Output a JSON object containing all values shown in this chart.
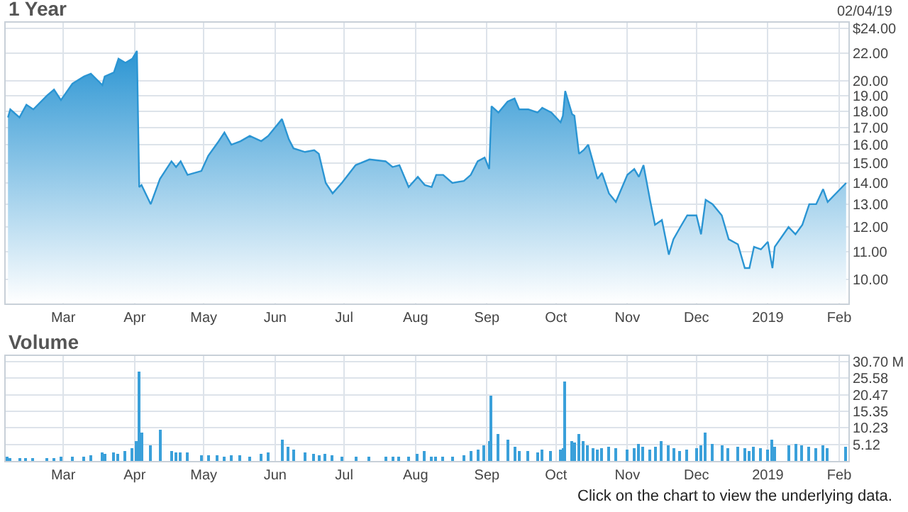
{
  "chart_data": [
    {
      "type": "area",
      "title": "1 Year",
      "annotations": [
        "02/04/19"
      ],
      "log": "y",
      "grid": true,
      "legend": false,
      "x": [
        "2018-02-05",
        "2018-02-06",
        "2018-02-10",
        "2018-02-13",
        "2018-02-16",
        "2018-02-22",
        "2018-02-25",
        "2018-02-28",
        "2018-03-05",
        "2018-03-10",
        "2018-03-13",
        "2018-03-18",
        "2018-03-19",
        "2018-03-23",
        "2018-03-25",
        "2018-03-28",
        "2018-03-31",
        "2018-04-02",
        "2018-04-03",
        "2018-04-04",
        "2018-04-08",
        "2018-04-12",
        "2018-04-17",
        "2018-04-19",
        "2018-04-21",
        "2018-04-24",
        "2018-04-30",
        "2018-05-03",
        "2018-05-07",
        "2018-05-10",
        "2018-05-13",
        "2018-05-17",
        "2018-05-21",
        "2018-05-26",
        "2018-05-29",
        "2018-06-04",
        "2018-06-07",
        "2018-06-09",
        "2018-06-14",
        "2018-06-18",
        "2018-06-20",
        "2018-06-23",
        "2018-06-26",
        "2018-06-30",
        "2018-07-06",
        "2018-07-12",
        "2018-07-19",
        "2018-07-22",
        "2018-07-25",
        "2018-07-29",
        "2018-08-02",
        "2018-08-05",
        "2018-08-08",
        "2018-08-10",
        "2018-08-13",
        "2018-08-17",
        "2018-08-22",
        "2018-08-25",
        "2018-08-28",
        "2018-08-31",
        "2018-09-02",
        "2018-09-03",
        "2018-09-06",
        "2018-09-10",
        "2018-09-13",
        "2018-09-15",
        "2018-09-19",
        "2018-09-23",
        "2018-09-25",
        "2018-09-29",
        "2018-10-03",
        "2018-10-04",
        "2018-10-05",
        "2018-10-08",
        "2018-10-09",
        "2018-10-11",
        "2018-10-13",
        "2018-10-15",
        "2018-10-17",
        "2018-10-19",
        "2018-10-21",
        "2018-10-24",
        "2018-10-27",
        "2018-11-01",
        "2018-11-04",
        "2018-11-06",
        "2018-11-08",
        "2018-11-11",
        "2018-11-13",
        "2018-11-16",
        "2018-11-19",
        "2018-11-21",
        "2018-11-24",
        "2018-11-27",
        "2018-12-01",
        "2018-12-03",
        "2018-12-05",
        "2018-12-08",
        "2018-12-12",
        "2018-12-15",
        "2018-12-19",
        "2018-12-22",
        "2018-12-24",
        "2018-12-26",
        "2018-12-29",
        "2019-01-01",
        "2019-01-03",
        "2019-01-04",
        "2019-01-10",
        "2019-01-13",
        "2019-01-16",
        "2019-01-19",
        "2019-01-22",
        "2019-01-25",
        "2019-01-27",
        "2019-02-04"
      ],
      "series": [
        {
          "color": "#2b95d3",
          "values": [
            17.6,
            18.1,
            17.6,
            18.4,
            18.1,
            19.0,
            19.4,
            18.7,
            19.8,
            20.3,
            20.5,
            19.7,
            20.3,
            20.6,
            21.6,
            21.3,
            21.6,
            22.2,
            13.8,
            13.9,
            13.0,
            14.2,
            15.1,
            14.8,
            15.1,
            14.4,
            14.6,
            15.4,
            16.1,
            16.7,
            16.0,
            16.2,
            16.5,
            16.2,
            16.5,
            17.5,
            16.3,
            15.8,
            15.6,
            15.7,
            15.5,
            14.0,
            13.5,
            14.0,
            14.9,
            15.2,
            15.1,
            14.8,
            14.9,
            13.8,
            14.3,
            13.9,
            13.8,
            14.4,
            14.4,
            14.0,
            14.1,
            14.4,
            15.1,
            15.3,
            14.7,
            18.3,
            17.9,
            18.6,
            18.8,
            18.1,
            18.1,
            17.9,
            18.2,
            17.9,
            17.3,
            17.7,
            19.3,
            17.8,
            17.7,
            15.5,
            15.7,
            16.0,
            15.1,
            14.2,
            14.5,
            13.5,
            13.1,
            14.4,
            14.7,
            14.3,
            14.9,
            13.1,
            12.1,
            12.3,
            10.9,
            11.5,
            12.0,
            12.5,
            12.5,
            11.7,
            13.2,
            13.0,
            12.5,
            11.5,
            11.3,
            10.4,
            10.4,
            11.2,
            11.1,
            11.4,
            10.4,
            11.2,
            12.0,
            11.7,
            12.1,
            13.0,
            13.0,
            13.7,
            13.1,
            14.0
          ]
        }
      ],
      "xlim": [
        "2018-02-04",
        "2019-02-05"
      ],
      "xticks": [
        {
          "value": "2018-03-01",
          "label": "Mar"
        },
        {
          "value": "2018-04-01",
          "label": "Apr"
        },
        {
          "value": "2018-05-01",
          "label": "May"
        },
        {
          "value": "2018-06-01",
          "label": "Jun"
        },
        {
          "value": "2018-07-01",
          "label": "Jul"
        },
        {
          "value": "2018-08-01",
          "label": "Aug"
        },
        {
          "value": "2018-09-01",
          "label": "Sep"
        },
        {
          "value": "2018-10-01",
          "label": "Oct"
        },
        {
          "value": "2018-11-01",
          "label": "Nov"
        },
        {
          "value": "2018-12-01",
          "label": "Dec"
        },
        {
          "value": "2019-01-01",
          "label": "2019"
        },
        {
          "value": "2019-02-01",
          "label": "Feb"
        }
      ],
      "ylim": [
        9.2,
        24.5
      ],
      "yticks": [
        {
          "value": 10,
          "label": "10.00"
        },
        {
          "value": 11,
          "label": "11.00"
        },
        {
          "value": 12,
          "label": "12.00"
        },
        {
          "value": 13,
          "label": "13.00"
        },
        {
          "value": 14,
          "label": "14.00"
        },
        {
          "value": 15,
          "label": "15.00"
        },
        {
          "value": 16,
          "label": "16.00"
        },
        {
          "value": 17,
          "label": "17.00"
        },
        {
          "value": 18,
          "label": "18.00"
        },
        {
          "value": 19,
          "label": "19.00"
        },
        {
          "value": 20,
          "label": "20.00"
        },
        {
          "value": 22,
          "label": "22.00"
        },
        {
          "value": 24,
          "label": "$24.00"
        }
      ]
    },
    {
      "type": "bar",
      "title": "Volume",
      "annotations": [
        "Click on the chart to view the underlying data."
      ],
      "grid": true,
      "legend": false,
      "x": [
        "2018-02-05",
        "2018-02-06",
        "2018-02-10",
        "2018-02-13",
        "2018-02-16",
        "2018-02-22",
        "2018-02-25",
        "2018-02-28",
        "2018-03-05",
        "2018-03-10",
        "2018-03-13",
        "2018-03-18",
        "2018-03-19",
        "2018-03-23",
        "2018-03-25",
        "2018-03-28",
        "2018-03-31",
        "2018-04-02",
        "2018-04-03",
        "2018-04-04",
        "2018-04-08",
        "2018-04-12",
        "2018-04-17",
        "2018-04-19",
        "2018-04-21",
        "2018-04-24",
        "2018-04-30",
        "2018-05-03",
        "2018-05-07",
        "2018-05-10",
        "2018-05-13",
        "2018-05-17",
        "2018-05-21",
        "2018-05-26",
        "2018-05-29",
        "2018-06-04",
        "2018-06-07",
        "2018-06-09",
        "2018-06-14",
        "2018-06-18",
        "2018-06-20",
        "2018-06-23",
        "2018-06-26",
        "2018-06-30",
        "2018-07-06",
        "2018-07-12",
        "2018-07-19",
        "2018-07-22",
        "2018-07-25",
        "2018-07-29",
        "2018-08-02",
        "2018-08-05",
        "2018-08-08",
        "2018-08-10",
        "2018-08-13",
        "2018-08-17",
        "2018-08-22",
        "2018-08-25",
        "2018-08-28",
        "2018-08-31",
        "2018-09-02",
        "2018-09-03",
        "2018-09-06",
        "2018-09-10",
        "2018-09-13",
        "2018-09-15",
        "2018-09-19",
        "2018-09-23",
        "2018-09-25",
        "2018-09-29",
        "2018-10-03",
        "2018-10-04",
        "2018-10-05",
        "2018-10-08",
        "2018-10-09",
        "2018-10-11",
        "2018-10-13",
        "2018-10-15",
        "2018-10-17",
        "2018-10-19",
        "2018-10-21",
        "2018-10-24",
        "2018-10-27",
        "2018-11-01",
        "2018-11-04",
        "2018-11-06",
        "2018-11-08",
        "2018-11-11",
        "2018-11-13",
        "2018-11-16",
        "2018-11-19",
        "2018-11-21",
        "2018-11-24",
        "2018-11-27",
        "2018-12-01",
        "2018-12-03",
        "2018-12-05",
        "2018-12-08",
        "2018-12-12",
        "2018-12-15",
        "2018-12-19",
        "2018-12-22",
        "2018-12-24",
        "2018-12-26",
        "2018-12-29",
        "2019-01-01",
        "2019-01-03",
        "2019-01-04",
        "2019-01-10",
        "2019-01-13",
        "2019-01-16",
        "2019-01-19",
        "2019-01-22",
        "2019-01-25",
        "2019-01-27",
        "2019-02-04"
      ],
      "series": [
        {
          "color": "#3aa0da",
          "values": [
            1.2,
            1.0,
            0.9,
            1.0,
            1.1,
            0.9,
            1.0,
            1.2,
            1.3,
            1.5,
            1.8,
            2.5,
            2.2,
            2.8,
            2.4,
            3.0,
            4.0,
            6.0,
            27.6,
            9.0,
            5.0,
            9.5,
            3.0,
            2.5,
            2.8,
            2.5,
            2.0,
            1.8,
            2.0,
            1.6,
            1.8,
            2.0,
            1.5,
            2.2,
            2.5,
            6.5,
            4.5,
            3.5,
            2.5,
            2.2,
            2.0,
            2.3,
            2.0,
            1.5,
            1.4,
            1.3,
            1.4,
            1.2,
            1.5,
            1.4,
            2.2,
            3.0,
            1.5,
            1.3,
            1.4,
            1.5,
            2.0,
            3.0,
            3.5,
            5.0,
            6.0,
            20.3,
            8.5,
            6.5,
            4.5,
            3.0,
            3.2,
            2.8,
            3.5,
            3.0,
            3.5,
            4.0,
            24.7,
            6.0,
            5.6,
            8.5,
            6.0,
            5.0,
            4.0,
            3.5,
            4.0,
            4.5,
            4.0,
            3.5,
            4.0,
            5.5,
            4.5,
            3.5,
            4.5,
            6.0,
            5.0,
            4.0,
            3.0,
            3.5,
            4.0,
            5.0,
            9.0,
            5.5,
            5.0,
            4.0,
            4.5,
            4.0,
            3.0,
            4.5,
            4.0,
            3.5,
            6.5,
            4.5,
            5.0,
            5.5,
            5.0,
            4.5,
            4.0,
            5.0,
            4.0,
            4.5
          ]
        }
      ],
      "xlim": [
        "2018-02-04",
        "2019-02-05"
      ],
      "xticks": [
        {
          "value": "2018-03-01",
          "label": "Mar"
        },
        {
          "value": "2018-04-01",
          "label": "Apr"
        },
        {
          "value": "2018-05-01",
          "label": "May"
        },
        {
          "value": "2018-06-01",
          "label": "Jun"
        },
        {
          "value": "2018-07-01",
          "label": "Jul"
        },
        {
          "value": "2018-08-01",
          "label": "Aug"
        },
        {
          "value": "2018-09-01",
          "label": "Sep"
        },
        {
          "value": "2018-10-01",
          "label": "Oct"
        },
        {
          "value": "2018-11-01",
          "label": "Nov"
        },
        {
          "value": "2018-12-01",
          "label": "Dec"
        },
        {
          "value": "2019-01-01",
          "label": "2019"
        },
        {
          "value": "2019-02-01",
          "label": "Feb"
        }
      ],
      "ylim": [
        0,
        32.5
      ],
      "yticks": [
        5.12,
        10.23,
        15.35,
        20.47,
        25.58,
        {
          "value": 30.7,
          "label": "30.70 M"
        }
      ]
    }
  ]
}
